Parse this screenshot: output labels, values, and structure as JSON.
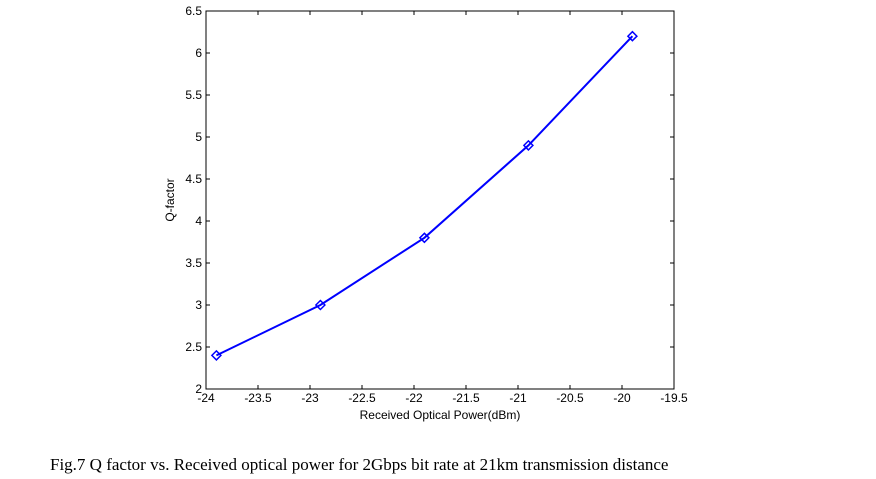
{
  "chart_data": {
    "type": "line",
    "title": "",
    "xlabel": "Received Optical Power(dBm)",
    "ylabel": "Q-factor",
    "xlim": [
      -24,
      -19.5
    ],
    "ylim": [
      2,
      6.5
    ],
    "xticks": [
      -24,
      -23.5,
      -23,
      -22.5,
      -22,
      -21.5,
      -21,
      -20.5,
      -20,
      -19.5
    ],
    "yticks": [
      2,
      2.5,
      3,
      3.5,
      4,
      4.5,
      5,
      5.5,
      6,
      6.5
    ],
    "grid": false,
    "series": [
      {
        "name": "Q-factor",
        "color": "#0000ff",
        "marker": "diamond",
        "x": [
          -23.9,
          -22.9,
          -21.9,
          -20.9,
          -19.9
        ],
        "y": [
          2.4,
          3.0,
          3.8,
          4.9,
          6.2
        ]
      }
    ]
  },
  "caption": "Fig.7 Q factor vs. Received optical power for 2Gbps bit rate at 21km transmission distance"
}
